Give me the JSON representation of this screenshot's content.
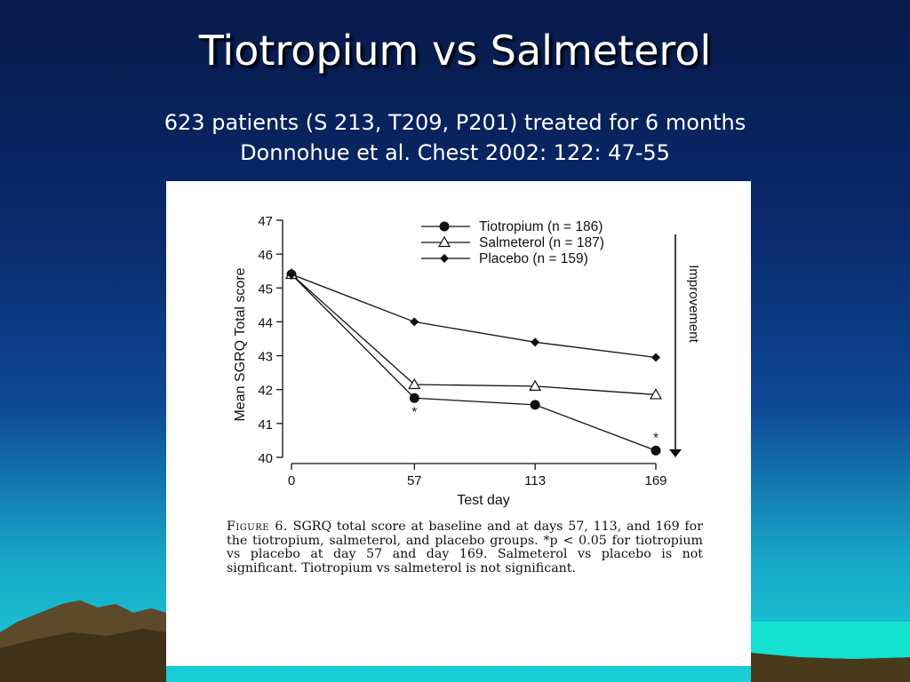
{
  "slide": {
    "title": "Tiotropium vs Salmeterol",
    "subtitle_line1": "623 patients (S 213, T209, P201) treated for 6 months",
    "subtitle_line2": "Donnohue et al. Chest 2002: 122: 47-55"
  },
  "figure": {
    "caption_label": "Figure 6.",
    "caption_text": "SGRQ total score at baseline and at days 57, 113, and 169 for the tiotropium, salmeterol, and placebo groups. *p < 0.05 for tiotropium vs placebo at day 57 and day 169. Salmeterol vs placebo is not significant. Tiotropium vs salmeterol is not significant."
  },
  "chart_data": {
    "type": "line",
    "x": [
      0,
      57,
      113,
      169
    ],
    "xlabel": "Test day",
    "ylabel": "Mean SGRQ Total score",
    "ylim": [
      40,
      47
    ],
    "yticks": [
      40,
      41,
      42,
      43,
      44,
      45,
      46,
      47
    ],
    "xticks": [
      0,
      57,
      113,
      169
    ],
    "series": [
      {
        "name": "Tiotropium (n = 186)",
        "marker": "filled-circle",
        "values": [
          45.4,
          41.75,
          41.55,
          40.2
        ]
      },
      {
        "name": "Salmeterol (n = 187)",
        "marker": "open-triangle",
        "values": [
          45.4,
          42.15,
          42.1,
          41.85
        ]
      },
      {
        "name": "Placebo (n = 159)",
        "marker": "filled-diamond",
        "values": [
          45.4,
          44.0,
          43.4,
          42.95
        ]
      }
    ],
    "significance_marks": [
      {
        "x": 57,
        "label": "*"
      },
      {
        "x": 169,
        "label": "*"
      }
    ],
    "arrow_label": "Improvement",
    "legend_position": "top-right",
    "grid": false
  },
  "colors": {
    "title_text": "#ffffff",
    "panel_background": "#ffffff",
    "chart_ink": "#111111"
  }
}
